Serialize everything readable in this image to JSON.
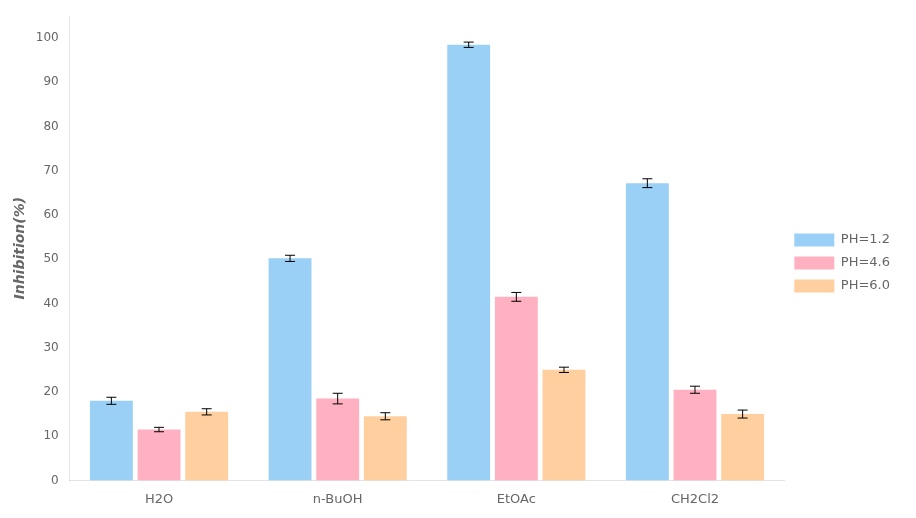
{
  "chart_data": {
    "type": "bar",
    "categories": [
      "H2O",
      "n-BuOH",
      "EtOAc",
      "CH2Cl2"
    ],
    "series": [
      {
        "name": "PH=1.2",
        "values": [
          18.0,
          50.2,
          98.5,
          67.2
        ],
        "errors": [
          0.8,
          0.7,
          0.6,
          1.0
        ]
      },
      {
        "name": "PH=4.6",
        "values": [
          11.5,
          18.5,
          41.5,
          20.5
        ],
        "errors": [
          0.5,
          1.2,
          1.0,
          0.8
        ]
      },
      {
        "name": "PH=6.0",
        "values": [
          15.5,
          14.5,
          25.0,
          15.0
        ],
        "errors": [
          0.7,
          0.8,
          0.6,
          0.9
        ]
      }
    ],
    "ylabel": "Inhibition(%)",
    "ylim": [
      0,
      105
    ],
    "yticks": [
      0,
      10,
      20,
      30,
      40,
      50,
      60,
      70,
      80,
      90,
      100
    ],
    "grid": false,
    "legend": "right"
  }
}
